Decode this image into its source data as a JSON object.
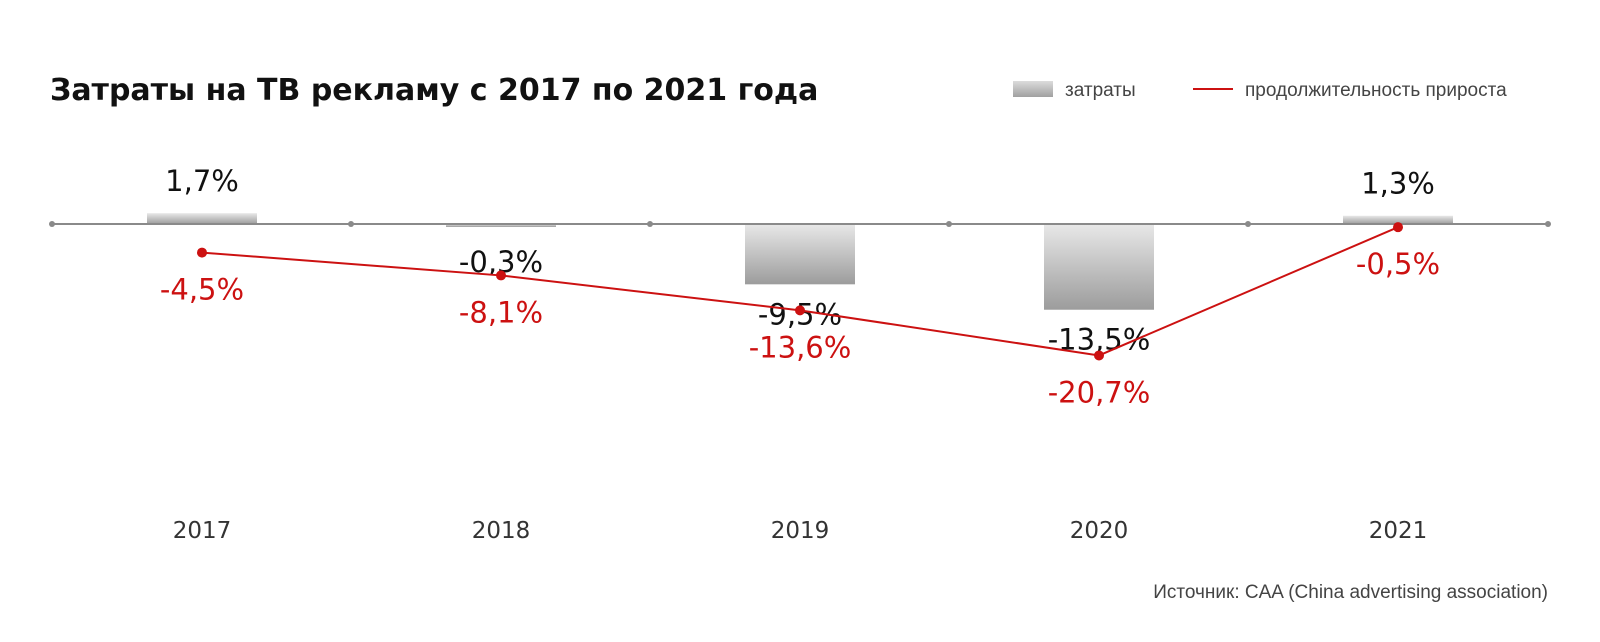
{
  "chart_data": {
    "type": "bar",
    "title": "Затраты на ТВ рекламу с 2017 по 2021 года",
    "categories": [
      "2017",
      "2018",
      "2019",
      "2020",
      "2021"
    ],
    "series": [
      {
        "name": "затраты",
        "type": "bar",
        "values": [
          1.7,
          -0.3,
          -9.5,
          -13.5,
          1.3
        ],
        "labels": [
          "1,7%",
          "-0,3%",
          "-9,5%",
          "-13,5%",
          "1,3%"
        ]
      },
      {
        "name": "продолжительность прироста",
        "type": "line",
        "values": [
          -4.5,
          -8.1,
          -13.6,
          -20.7,
          -0.5
        ],
        "labels": [
          "-4,5%",
          "-8,1%",
          "-13,6%",
          "-20,7%",
          "-0,5%"
        ]
      }
    ],
    "legend": {
      "placement": "top-right"
    },
    "grid": false,
    "source": "Источник: CAA (China advertising association)",
    "colors": {
      "bar": "#b4b4b4",
      "line": "#cc1111",
      "axis": "#8a8a8a"
    }
  }
}
